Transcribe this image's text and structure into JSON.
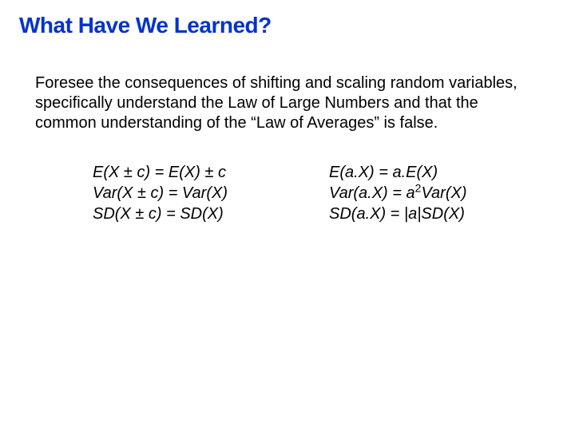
{
  "slide": {
    "title": "What Have We Learned?",
    "title_color": "#0033cc",
    "title_fontsize": 28,
    "title_fontfamily": "Verdana",
    "title_fontweight": 900,
    "background_color": "#ffffff",
    "body_color": "#000000",
    "body_fontsize": 20,
    "body_fontfamily": "Arial",
    "paragraph": "Foresee the consequences of shifting and scaling random variables, specifically understand the Law of Large Numbers and that the common understanding of the “Law of Averages” is false.",
    "formulas_left": {
      "line1": {
        "pre": "E(X ",
        "op": "±",
        "mid": " c) = E(X) ",
        "op2": "±",
        "post": " c"
      },
      "line2": {
        "pre": "Var(X ",
        "op": "±",
        "mid": " c) = Var(X)",
        "post": ""
      },
      "line3": {
        "pre": "SD(X ",
        "op": "±",
        "mid": " c) = SD(X)",
        "post": ""
      }
    },
    "formulas_right": {
      "line1": {
        "text": "E(a.X) = a.E(X)"
      },
      "line2": {
        "pre": "Var(a.X) = a",
        "sup": "2",
        "post": "Var(X)"
      },
      "line3": {
        "text": "SD(a.X) = |a|SD(X)"
      }
    }
  }
}
